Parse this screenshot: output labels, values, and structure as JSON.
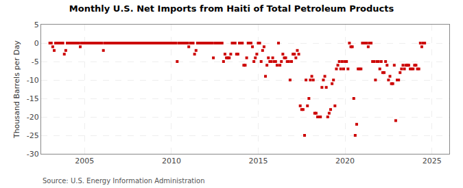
{
  "chart_data": {
    "type": "scatter",
    "title": "Monthly U.S. Net Imports from Haiti of Total Petroleum Products",
    "ylabel": "Thousand Barrels per Day",
    "annotations": [
      "Source: U.S. Energy Information Administration"
    ],
    "xlim": [
      2002.5,
      2026
    ],
    "xticks": [
      2005,
      2010,
      2015,
      2020,
      2025
    ],
    "ylim": [
      -30,
      5
    ],
    "yticks": [
      5,
      0,
      -5,
      -10,
      -15,
      -20,
      -25,
      -30
    ],
    "grid": true,
    "color": "#cc0000",
    "marker": "square",
    "x": [
      2003.0,
      2003.083,
      2003.167,
      2003.25,
      2003.333,
      2003.417,
      2003.5,
      2003.583,
      2003.667,
      2003.75,
      2003.833,
      2003.917,
      2004.0,
      2004.083,
      2004.167,
      2004.25,
      2004.333,
      2004.417,
      2004.5,
      2004.583,
      2004.667,
      2004.75,
      2004.833,
      2004.917,
      2005.0,
      2005.083,
      2005.167,
      2005.25,
      2005.333,
      2005.417,
      2005.5,
      2005.583,
      2005.667,
      2005.75,
      2005.833,
      2005.917,
      2006.0,
      2006.083,
      2006.167,
      2006.25,
      2006.333,
      2006.417,
      2006.5,
      2006.583,
      2006.667,
      2006.75,
      2006.833,
      2006.917,
      2007.0,
      2007.083,
      2007.167,
      2007.25,
      2007.333,
      2007.417,
      2007.5,
      2007.583,
      2007.667,
      2007.75,
      2007.833,
      2007.917,
      2008.0,
      2008.083,
      2008.167,
      2008.25,
      2008.333,
      2008.417,
      2008.5,
      2008.583,
      2008.667,
      2008.75,
      2008.833,
      2008.917,
      2009.0,
      2009.083,
      2009.167,
      2009.25,
      2009.333,
      2009.417,
      2009.5,
      2009.583,
      2009.667,
      2009.75,
      2009.833,
      2009.917,
      2010.0,
      2010.083,
      2010.167,
      2010.25,
      2010.333,
      2010.417,
      2010.5,
      2010.583,
      2010.667,
      2010.75,
      2010.833,
      2010.917,
      2011.0,
      2011.083,
      2011.167,
      2011.25,
      2011.333,
      2011.417,
      2011.5,
      2011.583,
      2011.667,
      2011.75,
      2011.833,
      2011.917,
      2012.0,
      2012.083,
      2012.167,
      2012.25,
      2012.333,
      2012.417,
      2012.5,
      2012.583,
      2012.667,
      2012.75,
      2012.833,
      2012.917,
      2013.0,
      2013.083,
      2013.167,
      2013.25,
      2013.333,
      2013.417,
      2013.5,
      2013.583,
      2013.667,
      2013.75,
      2013.833,
      2013.917,
      2014.0,
      2014.083,
      2014.167,
      2014.25,
      2014.333,
      2014.417,
      2014.5,
      2014.583,
      2014.667,
      2014.75,
      2014.833,
      2014.917,
      2015.0,
      2015.083,
      2015.167,
      2015.25,
      2015.333,
      2015.417,
      2015.5,
      2015.583,
      2015.667,
      2015.75,
      2015.833,
      2015.917,
      2016.0,
      2016.083,
      2016.167,
      2016.25,
      2016.333,
      2016.417,
      2016.5,
      2016.583,
      2016.667,
      2016.75,
      2016.833,
      2016.917,
      2017.0,
      2017.083,
      2017.167,
      2017.25,
      2017.333,
      2017.417,
      2017.5,
      2017.583,
      2017.667,
      2017.75,
      2017.833,
      2017.917,
      2018.0,
      2018.083,
      2018.167,
      2018.25,
      2018.333,
      2018.417,
      2018.5,
      2018.583,
      2018.667,
      2018.75,
      2018.833,
      2018.917,
      2019.0,
      2019.083,
      2019.167,
      2019.25,
      2019.333,
      2019.417,
      2019.5,
      2019.583,
      2019.667,
      2019.75,
      2019.833,
      2019.917,
      2020.0,
      2020.083,
      2020.167,
      2020.25,
      2020.333,
      2020.417,
      2020.5,
      2020.583,
      2020.667,
      2020.75,
      2020.833,
      2020.917,
      2021.0,
      2021.083,
      2021.167,
      2021.25,
      2021.333,
      2021.417,
      2021.5,
      2021.583,
      2021.667,
      2021.75,
      2021.833,
      2021.917,
      2022.0,
      2022.083,
      2022.167,
      2022.25,
      2022.333,
      2022.417,
      2022.5,
      2022.583,
      2022.667,
      2022.75,
      2022.833,
      2022.917,
      2023.0,
      2023.083,
      2023.167,
      2023.25,
      2023.333,
      2023.417,
      2023.5,
      2023.583,
      2023.667,
      2023.75,
      2023.833,
      2023.917,
      2024.0,
      2024.083,
      2024.167,
      2024.25,
      2024.333,
      2024.417,
      2024.5,
      2024.583
    ],
    "values": [
      0,
      0,
      -1,
      -2,
      0,
      0,
      0,
      0,
      0,
      0,
      -3,
      -2,
      0,
      0,
      0,
      0,
      0,
      0,
      0,
      0,
      0,
      -1,
      0,
      0,
      0,
      0,
      0,
      0,
      0,
      0,
      0,
      0,
      0,
      0,
      0,
      0,
      0,
      -2,
      0,
      0,
      0,
      0,
      0,
      0,
      0,
      0,
      0,
      0,
      0,
      0,
      0,
      0,
      0,
      0,
      0,
      0,
      0,
      0,
      0,
      0,
      0,
      0,
      0,
      0,
      0,
      0,
      0,
      0,
      0,
      0,
      0,
      0,
      0,
      0,
      0,
      0,
      0,
      0,
      0,
      0,
      0,
      0,
      0,
      0,
      0,
      0,
      0,
      0,
      -5,
      0,
      0,
      0,
      0,
      0,
      0,
      0,
      -1,
      0,
      0,
      0,
      -3,
      -2,
      0,
      0,
      0,
      0,
      0,
      0,
      0,
      0,
      0,
      0,
      0,
      -4,
      0,
      0,
      0,
      0,
      0,
      0,
      -5,
      -3,
      -4,
      -4,
      -4,
      -3,
      0,
      0,
      0,
      -3,
      -3,
      0,
      0,
      0,
      -6,
      -6,
      -4,
      0,
      0,
      0,
      -1,
      -5,
      -4,
      -3,
      0,
      0,
      -5,
      -2,
      -1,
      -9,
      -6,
      -4,
      -5,
      -5,
      -4,
      -5,
      -5,
      -6,
      0,
      -6,
      -5,
      -3,
      -4,
      -4,
      -5,
      -5,
      -10,
      -5,
      -3,
      -3,
      -4,
      -2,
      -3,
      -17,
      -18,
      -18,
      -25,
      -10,
      -17,
      -15,
      -10,
      -9,
      -10,
      -19,
      -19,
      -20,
      -20,
      -20,
      -12,
      -10,
      -9,
      -12,
      -20,
      -19,
      -18,
      -11,
      -10,
      -17,
      -7,
      -6,
      -5,
      -7,
      -5,
      -7,
      -5,
      -5,
      -7,
      0,
      -1,
      -1,
      -15,
      -25,
      -22,
      -7,
      -7,
      -7,
      0,
      0,
      0,
      0,
      -1,
      0,
      0,
      -5,
      -5,
      -10,
      -5,
      -5,
      -7,
      -5,
      -8,
      -8,
      -5,
      -6,
      -10,
      -9,
      -11,
      -11,
      -6,
      -21,
      -10,
      -10,
      -8,
      -7,
      -6,
      -7,
      -6,
      -6,
      -6,
      -7,
      -7,
      -7,
      -6,
      -6,
      -7,
      -7,
      0,
      -1,
      0,
      0
    ]
  }
}
